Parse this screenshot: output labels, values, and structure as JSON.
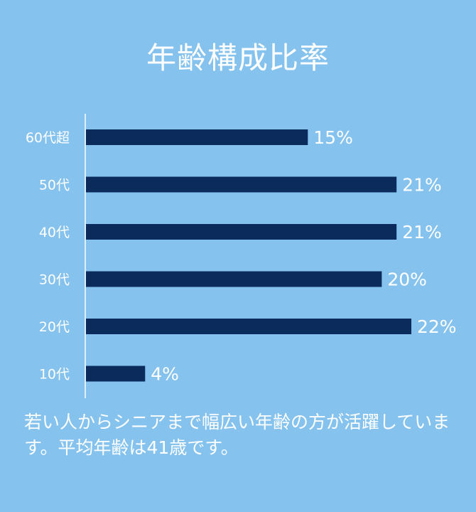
{
  "title": "年齢構成比率",
  "caption": "若い人からシニアまで幅広い年齢の方が活躍しています。平均年齢は41歳です。",
  "colors": {
    "background": "#85c3ee",
    "bar": "#0a2b5c",
    "text": "#ffffff",
    "axis": "#ffffff"
  },
  "chart_data": {
    "type": "bar",
    "orientation": "horizontal",
    "categories": [
      "60代超",
      "50代",
      "40代",
      "30代",
      "20代",
      "10代"
    ],
    "values": [
      15,
      21,
      21,
      20,
      22,
      4
    ],
    "value_labels": [
      "15%",
      "21%",
      "21%",
      "20%",
      "22%",
      "4%"
    ],
    "xlim": [
      0,
      22
    ],
    "grid": false
  }
}
